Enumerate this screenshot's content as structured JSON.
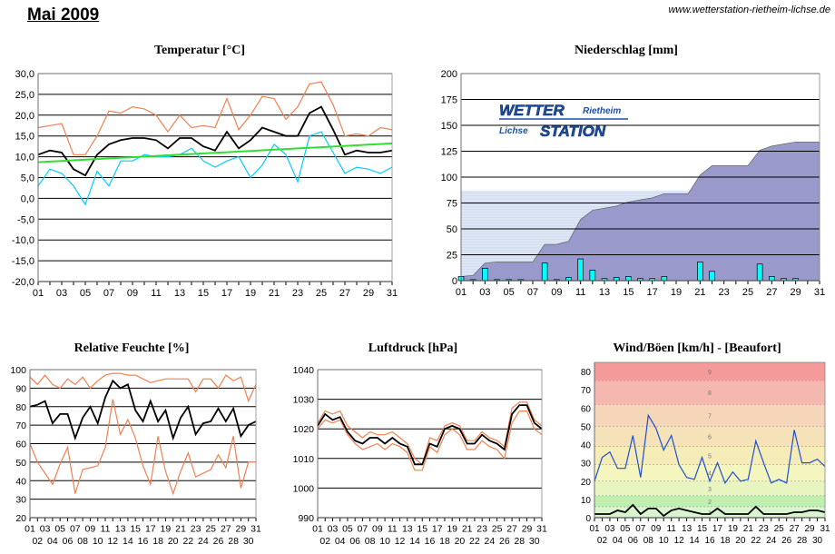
{
  "page": {
    "title": "Mai 2009",
    "url": "www.wetterstation-rietheim-lichse.de"
  },
  "logo": {
    "text1": "WETTER",
    "text2": "Rietheim",
    "text3": "Lichse",
    "text4": "STATION"
  },
  "chart_data": [
    {
      "id": "temperatur",
      "type": "line",
      "title": "Temperatur [°C]",
      "ylim": [
        -20,
        30
      ],
      "yticks": [
        -20,
        -15,
        -10,
        -5,
        0,
        5,
        10,
        15,
        20,
        25,
        30
      ],
      "yticklabels": [
        "-20,0",
        "-15,0",
        "-10,0",
        "-5,0",
        "0,0",
        "5,0",
        "10,0",
        "15,0",
        "20,0",
        "25,0",
        "30,0"
      ],
      "x": [
        1,
        2,
        3,
        4,
        5,
        6,
        7,
        8,
        9,
        10,
        11,
        12,
        13,
        14,
        15,
        16,
        17,
        18,
        19,
        20,
        21,
        22,
        23,
        24,
        25,
        26,
        27,
        28,
        29,
        30,
        31
      ],
      "series": [
        {
          "name": "Max",
          "color": "#f08050",
          "values": [
            17,
            17.5,
            18,
            10.5,
            10.5,
            15,
            21,
            20.5,
            22,
            21.5,
            20,
            16,
            20,
            17,
            17.5,
            17,
            24,
            16.5,
            20,
            24.5,
            24,
            19,
            22,
            27.5,
            28,
            22.5,
            15,
            15.5,
            15,
            17,
            16.5
          ]
        },
        {
          "name": "Mittel",
          "color": "#000000",
          "values": [
            10.5,
            11.5,
            11,
            7,
            5.5,
            10.5,
            13,
            14,
            14.5,
            14.5,
            14,
            12,
            14.5,
            14.5,
            12.5,
            11.5,
            16,
            12,
            14,
            17,
            16,
            15,
            15,
            20.5,
            22,
            16.5,
            10.5,
            11.5,
            11,
            11,
            11.5
          ]
        },
        {
          "name": "Min",
          "color": "#00ccff",
          "values": [
            3,
            7,
            6,
            3,
            -1.5,
            6.5,
            3,
            9,
            9,
            10.5,
            10,
            10,
            10.5,
            12,
            9,
            7.5,
            9,
            10,
            5,
            8,
            13,
            10.5,
            4,
            15,
            16,
            11,
            6,
            7.5,
            7,
            6,
            7.5
          ]
        },
        {
          "name": "Trend",
          "color": "#33dd33",
          "values": [
            8.7,
            8.85,
            9.0,
            9.15,
            9.3,
            9.45,
            9.6,
            9.75,
            9.9,
            10.05,
            10.2,
            10.35,
            10.5,
            10.65,
            10.8,
            10.95,
            11.1,
            11.25,
            11.4,
            11.55,
            11.7,
            11.85,
            12.0,
            12.15,
            12.3,
            12.45,
            12.6,
            12.75,
            12.9,
            13.05,
            13.2
          ]
        }
      ],
      "xticklabels_top": [
        "01",
        "03",
        "05",
        "07",
        "09",
        "11",
        "13",
        "15",
        "17",
        "19",
        "21",
        "23",
        "25",
        "27",
        "29",
        "31"
      ],
      "xticklabels_bottom": [
        "02",
        "04",
        "06",
        "08",
        "10",
        "12",
        "14",
        "16",
        "18",
        "20",
        "22",
        "24",
        "26",
        "28",
        "30"
      ]
    },
    {
      "id": "niederschlag",
      "type": "bar",
      "title": "Niederschlag [mm]",
      "ylim": [
        0,
        200
      ],
      "yticks": [
        0,
        25,
        50,
        75,
        100,
        125,
        150,
        175,
        200
      ],
      "yticklabels": [
        "0",
        "25",
        "50",
        "75",
        "100",
        "125",
        "150",
        "175",
        "200"
      ],
      "x": [
        1,
        2,
        3,
        4,
        5,
        6,
        7,
        8,
        9,
        10,
        11,
        12,
        13,
        14,
        15,
        16,
        17,
        18,
        19,
        20,
        21,
        22,
        23,
        24,
        25,
        26,
        27,
        28,
        29,
        30,
        31
      ],
      "series": [
        {
          "name": "Tagesniederschlag",
          "color": "#00ffff",
          "values": [
            4,
            1,
            12,
            1,
            1,
            1,
            0,
            17,
            1,
            3,
            21,
            10,
            2,
            3,
            4,
            2,
            2,
            4,
            0,
            0,
            18,
            9,
            0,
            0,
            0,
            16,
            4,
            2,
            2,
            0,
            0
          ]
        },
        {
          "name": "Summe",
          "color": "#9999cc",
          "values": [
            4,
            5,
            17,
            18,
            18,
            18,
            18,
            35,
            35,
            38,
            59,
            68,
            70,
            72,
            76,
            78,
            80,
            84,
            84,
            84,
            102,
            111,
            111,
            111,
            111,
            126,
            130,
            132,
            134,
            134,
            134
          ]
        },
        {
          "name": "Vorjahr",
          "color": "#dde6f5",
          "values": [
            87,
            87,
            87,
            87,
            87,
            87,
            87,
            87,
            87,
            87,
            87,
            87,
            87,
            87,
            87,
            87,
            87,
            87,
            87,
            87,
            87,
            87,
            87,
            87,
            87,
            87,
            87,
            87,
            87,
            87,
            87
          ]
        }
      ],
      "xticklabels_top": [
        "01",
        "03",
        "05",
        "07",
        "09",
        "11",
        "13",
        "15",
        "17",
        "19",
        "21",
        "23",
        "25",
        "27",
        "29",
        "31"
      ],
      "xticklabels_bottom": [
        "02",
        "04",
        "06",
        "08",
        "10",
        "12",
        "14",
        "16",
        "18",
        "20",
        "22",
        "24",
        "26",
        "28",
        "30"
      ]
    },
    {
      "id": "feuchte",
      "type": "line",
      "title": "Relative Feuchte [%]",
      "ylim": [
        20,
        100
      ],
      "yticks": [
        20,
        30,
        40,
        50,
        60,
        70,
        80,
        90,
        100
      ],
      "yticklabels": [
        "20",
        "30",
        "40",
        "50",
        "60",
        "70",
        "80",
        "90",
        "100"
      ],
      "x": [
        1,
        2,
        3,
        4,
        5,
        6,
        7,
        8,
        9,
        10,
        11,
        12,
        13,
        14,
        15,
        16,
        17,
        18,
        19,
        20,
        21,
        22,
        23,
        24,
        25,
        26,
        27,
        28,
        29,
        30,
        31
      ],
      "series": [
        {
          "name": "Max",
          "color": "#f08050",
          "values": [
            96,
            92,
            97,
            92,
            90,
            95,
            92,
            96,
            90,
            94,
            97,
            98,
            98,
            97,
            97,
            95,
            93,
            94,
            95,
            95,
            95,
            95,
            88,
            95,
            95,
            90,
            97,
            94,
            96,
            83,
            92
          ]
        },
        {
          "name": "Mittel",
          "color": "#000000",
          "values": [
            80,
            81,
            83,
            71,
            76,
            76,
            63,
            74,
            80,
            71,
            85,
            94,
            90,
            92,
            78,
            72,
            83,
            72,
            78,
            63,
            74,
            80,
            65,
            71,
            72,
            79,
            72,
            79,
            64,
            70,
            72
          ]
        },
        {
          "name": "Min",
          "color": "#f08050",
          "values": [
            60,
            50,
            44,
            38,
            49,
            58,
            33,
            46,
            47,
            48,
            58,
            84,
            65,
            73,
            63,
            48,
            38,
            64,
            45,
            33,
            45,
            55,
            42,
            44,
            46,
            54,
            47,
            64,
            36,
            50,
            50
          ]
        }
      ],
      "xticklabels_top": [
        "01",
        "03",
        "05",
        "07",
        "09",
        "11",
        "13",
        "15",
        "17",
        "19",
        "21",
        "23",
        "25",
        "27",
        "29",
        "31"
      ],
      "xticklabels_bottom": [
        "02",
        "04",
        "06",
        "08",
        "10",
        "12",
        "14",
        "16",
        "18",
        "20",
        "22",
        "24",
        "26",
        "28",
        "30"
      ]
    },
    {
      "id": "luftdruck",
      "type": "line",
      "title": "Luftdruck [hPa]",
      "ylim": [
        990,
        1040
      ],
      "yticks": [
        990,
        1000,
        1010,
        1020,
        1030,
        1040
      ],
      "yticklabels": [
        "990",
        "1000",
        "1010",
        "1020",
        "1030",
        "1040"
      ],
      "x": [
        1,
        2,
        3,
        4,
        5,
        6,
        7,
        8,
        9,
        10,
        11,
        12,
        13,
        14,
        15,
        16,
        17,
        18,
        19,
        20,
        21,
        22,
        23,
        24,
        25,
        26,
        27,
        28,
        29,
        30,
        31
      ],
      "series": [
        {
          "name": "Max",
          "color": "#f08050",
          "values": [
            1022,
            1026,
            1025,
            1026,
            1021,
            1019,
            1017,
            1019,
            1018,
            1018,
            1019,
            1017,
            1015,
            1010,
            1008,
            1017,
            1016,
            1021,
            1022,
            1021,
            1016,
            1016,
            1019,
            1017,
            1016,
            1014,
            1027,
            1029,
            1029,
            1023,
            1021
          ]
        },
        {
          "name": "Mittel",
          "color": "#000000",
          "values": [
            1021,
            1025,
            1023,
            1024,
            1019,
            1016,
            1015,
            1017,
            1017,
            1015,
            1017,
            1015,
            1014,
            1008,
            1008,
            1015,
            1014,
            1020,
            1021,
            1020,
            1015,
            1015,
            1018,
            1016,
            1015,
            1013,
            1025,
            1028,
            1028,
            1022,
            1020
          ]
        },
        {
          "name": "Min",
          "color": "#f08050",
          "values": [
            1020,
            1023,
            1022,
            1023,
            1018,
            1015,
            1013,
            1014,
            1015,
            1013,
            1015,
            1014,
            1012,
            1006,
            1006,
            1014,
            1012,
            1018,
            1020,
            1018,
            1013,
            1013,
            1016,
            1014,
            1013,
            1010,
            1022,
            1026,
            1026,
            1020,
            1018
          ]
        }
      ],
      "xticklabels_top": [
        "01",
        "03",
        "05",
        "07",
        "09",
        "11",
        "13",
        "15",
        "17",
        "19",
        "21",
        "23",
        "25",
        "27",
        "29",
        "31"
      ],
      "xticklabels_bottom": [
        "02",
        "04",
        "06",
        "08",
        "10",
        "12",
        "14",
        "16",
        "18",
        "20",
        "22",
        "24",
        "26",
        "28",
        "30"
      ]
    },
    {
      "id": "wind",
      "type": "line",
      "title": "Wind/Böen [km/h] - [Beaufort]",
      "ylim": [
        0,
        85
      ],
      "yticks": [
        0,
        10,
        20,
        30,
        40,
        50,
        60,
        70,
        80
      ],
      "yticklabels": [
        "0",
        "10",
        "20",
        "30",
        "40",
        "50",
        "60",
        "70",
        "80"
      ],
      "x": [
        1,
        2,
        3,
        4,
        5,
        6,
        7,
        8,
        9,
        10,
        11,
        12,
        13,
        14,
        15,
        16,
        17,
        18,
        19,
        20,
        21,
        22,
        23,
        24,
        25,
        26,
        27,
        28,
        29,
        30,
        31
      ],
      "beaufort": {
        "labels": [
          "1",
          "2",
          "3",
          "4",
          "5",
          "6",
          "7",
          "8",
          "9"
        ],
        "bounds": [
          0,
          6,
          12,
          20,
          29,
          39,
          50,
          62,
          75,
          85
        ],
        "colors": [
          "#d8f5d0",
          "#c0f0b0",
          "#e8f5c0",
          "#f5f5c0",
          "#f5ecb8",
          "#f5e2b8",
          "#f5d6b8",
          "#f5b8b0",
          "#f59a9a"
        ]
      },
      "series": [
        {
          "name": "Böen",
          "color": "#1f4fd0",
          "values": [
            20,
            33,
            36,
            27,
            27,
            45,
            22,
            56,
            49,
            37,
            45,
            29,
            22,
            21,
            33,
            20,
            30,
            19,
            25,
            20,
            21,
            42,
            30,
            19,
            21,
            19,
            48,
            30,
            30,
            32,
            28
          ]
        },
        {
          "name": "Wind",
          "color": "#000000",
          "values": [
            2,
            2,
            2,
            4,
            3,
            7,
            2,
            5,
            5,
            1,
            4,
            5,
            4,
            3,
            2,
            2,
            5,
            2,
            2,
            2,
            2,
            6,
            2,
            2,
            2,
            2,
            3,
            3,
            4,
            4,
            3
          ]
        }
      ],
      "xticklabels_top": [
        "01",
        "03",
        "05",
        "07",
        "09",
        "11",
        "13",
        "15",
        "17",
        "19",
        "21",
        "23",
        "25",
        "27",
        "29",
        "31"
      ],
      "xticklabels_bottom": [
        "02",
        "04",
        "06",
        "08",
        "10",
        "12",
        "14",
        "16",
        "18",
        "20",
        "22",
        "24",
        "26",
        "28",
        "30"
      ]
    }
  ]
}
